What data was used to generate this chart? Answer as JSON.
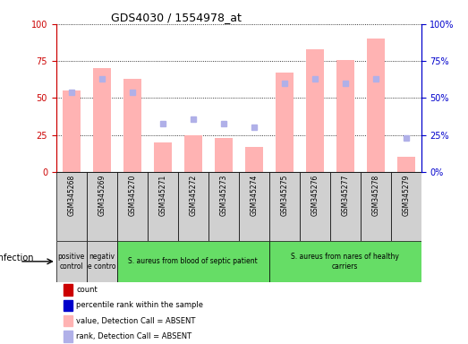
{
  "title": "GDS4030 / 1554978_at",
  "samples": [
    "GSM345268",
    "GSM345269",
    "GSM345270",
    "GSM345271",
    "GSM345272",
    "GSM345273",
    "GSM345274",
    "GSM345275",
    "GSM345276",
    "GSM345277",
    "GSM345278",
    "GSM345279"
  ],
  "bar_values": [
    55,
    70,
    63,
    20,
    25,
    23,
    17,
    67,
    83,
    76,
    90,
    10
  ],
  "rank_dots": [
    54,
    63,
    54,
    33,
    36,
    33,
    30,
    60,
    63,
    60,
    63,
    23
  ],
  "bar_color_absent": "#ffb3b3",
  "rank_dot_color_absent": "#b0b0e8",
  "ylim": [
    0,
    100
  ],
  "groups": [
    {
      "label": "positive\ncontrol",
      "start": 0,
      "end": 1,
      "color": "#d0d0d0"
    },
    {
      "label": "negativ\ne contro",
      "start": 1,
      "end": 2,
      "color": "#d0d0d0"
    },
    {
      "label": "S. aureus from blood of septic patient",
      "start": 2,
      "end": 7,
      "color": "#66dd66"
    },
    {
      "label": "S. aureus from nares of healthy\ncarriers",
      "start": 7,
      "end": 12,
      "color": "#66dd66"
    }
  ],
  "sample_bg_color": "#d0d0d0",
  "infection_label": "infection",
  "legend_items": [
    {
      "color": "#cc0000",
      "label": "count"
    },
    {
      "color": "#0000cc",
      "label": "percentile rank within the sample"
    },
    {
      "color": "#ffb3b3",
      "label": "value, Detection Call = ABSENT"
    },
    {
      "color": "#b0b0e8",
      "label": "rank, Detection Call = ABSENT"
    }
  ],
  "left_yaxis_color": "#cc0000",
  "right_yaxis_color": "#0000cc",
  "yticks": [
    0,
    25,
    50,
    75,
    100
  ],
  "background_color": "#ffffff",
  "grid_color": "#000000"
}
